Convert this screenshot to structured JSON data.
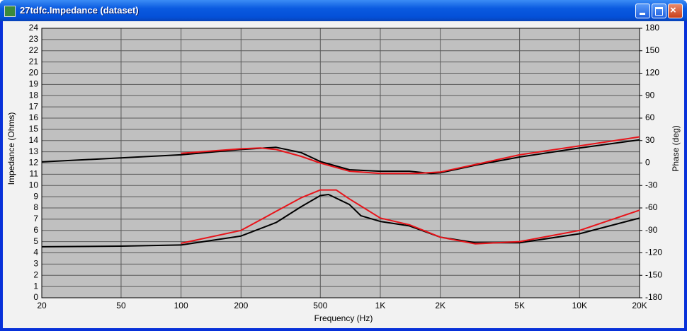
{
  "window": {
    "title": "27tdfc.Impedance (dataset)"
  },
  "chart_data": {
    "type": "line",
    "xlabel": "Frequency (Hz)",
    "ylabel": "Impedance (Ohms)",
    "y2label": "Phase (deg)",
    "xscale": "log",
    "grid": true,
    "background": "#c0c0c0",
    "grid_color": "#5a5a5a",
    "xlim": [
      20,
      20000
    ],
    "xticks": [
      20,
      50,
      100,
      200,
      500,
      {
        "value": 1000,
        "label": "1K"
      },
      {
        "value": 2000,
        "label": "2K"
      },
      {
        "value": 5000,
        "label": "5K"
      },
      {
        "value": 10000,
        "label": "10K"
      },
      {
        "value": 20000,
        "label": "20K"
      }
    ],
    "ylim": [
      0,
      24
    ],
    "yticks": [
      0,
      1,
      2,
      3,
      4,
      5,
      6,
      7,
      8,
      9,
      10,
      11,
      12,
      13,
      14,
      15,
      16,
      17,
      18,
      19,
      20,
      21,
      22,
      23,
      24
    ],
    "y2lim": [
      -180,
      180
    ],
    "y2ticks": [
      -180,
      -150,
      -120,
      -90,
      -60,
      -30,
      0,
      30,
      60,
      90,
      120,
      150,
      180
    ],
    "series": [
      {
        "color": "#000000",
        "axis": "y2",
        "x": [
          20,
          100,
          200,
          300,
          400,
          500,
          700,
          1000,
          1400,
          1800,
          2000,
          3000,
          5000,
          10000,
          20000
        ],
        "values": [
          1.5,
          11,
          18,
          21,
          14,
          2,
          -9,
          -11,
          -11,
          -14,
          -13,
          -3,
          8,
          20,
          31
        ]
      },
      {
        "color": "#e8141a",
        "axis": "y2",
        "x": [
          100,
          200,
          250,
          300,
          400,
          500,
          700,
          1000,
          1500,
          2000,
          3000,
          5000,
          10000,
          20000
        ],
        "values": [
          13,
          19,
          20,
          18,
          9,
          0,
          -11,
          -14,
          -14,
          -12,
          -2,
          11,
          23,
          35
        ]
      },
      {
        "color": "#000000",
        "x": [
          20,
          50,
          100,
          200,
          300,
          400,
          500,
          550,
          700,
          800,
          1000,
          1400,
          2000,
          3000,
          5000,
          10000,
          20000
        ],
        "values": [
          4.54,
          4.6,
          4.7,
          5.5,
          6.7,
          8.1,
          9.1,
          9.2,
          8.3,
          7.3,
          6.8,
          6.4,
          5.4,
          4.9,
          4.9,
          5.7,
          7.1
        ]
      },
      {
        "color": "#e8141a",
        "x": [
          100,
          200,
          300,
          400,
          500,
          600,
          700,
          1000,
          1400,
          2000,
          3000,
          5000,
          10000,
          20000
        ],
        "values": [
          4.85,
          6.0,
          7.7,
          8.9,
          9.6,
          9.6,
          8.8,
          7.1,
          6.5,
          5.4,
          4.8,
          5.0,
          6.0,
          7.8
        ]
      }
    ]
  }
}
